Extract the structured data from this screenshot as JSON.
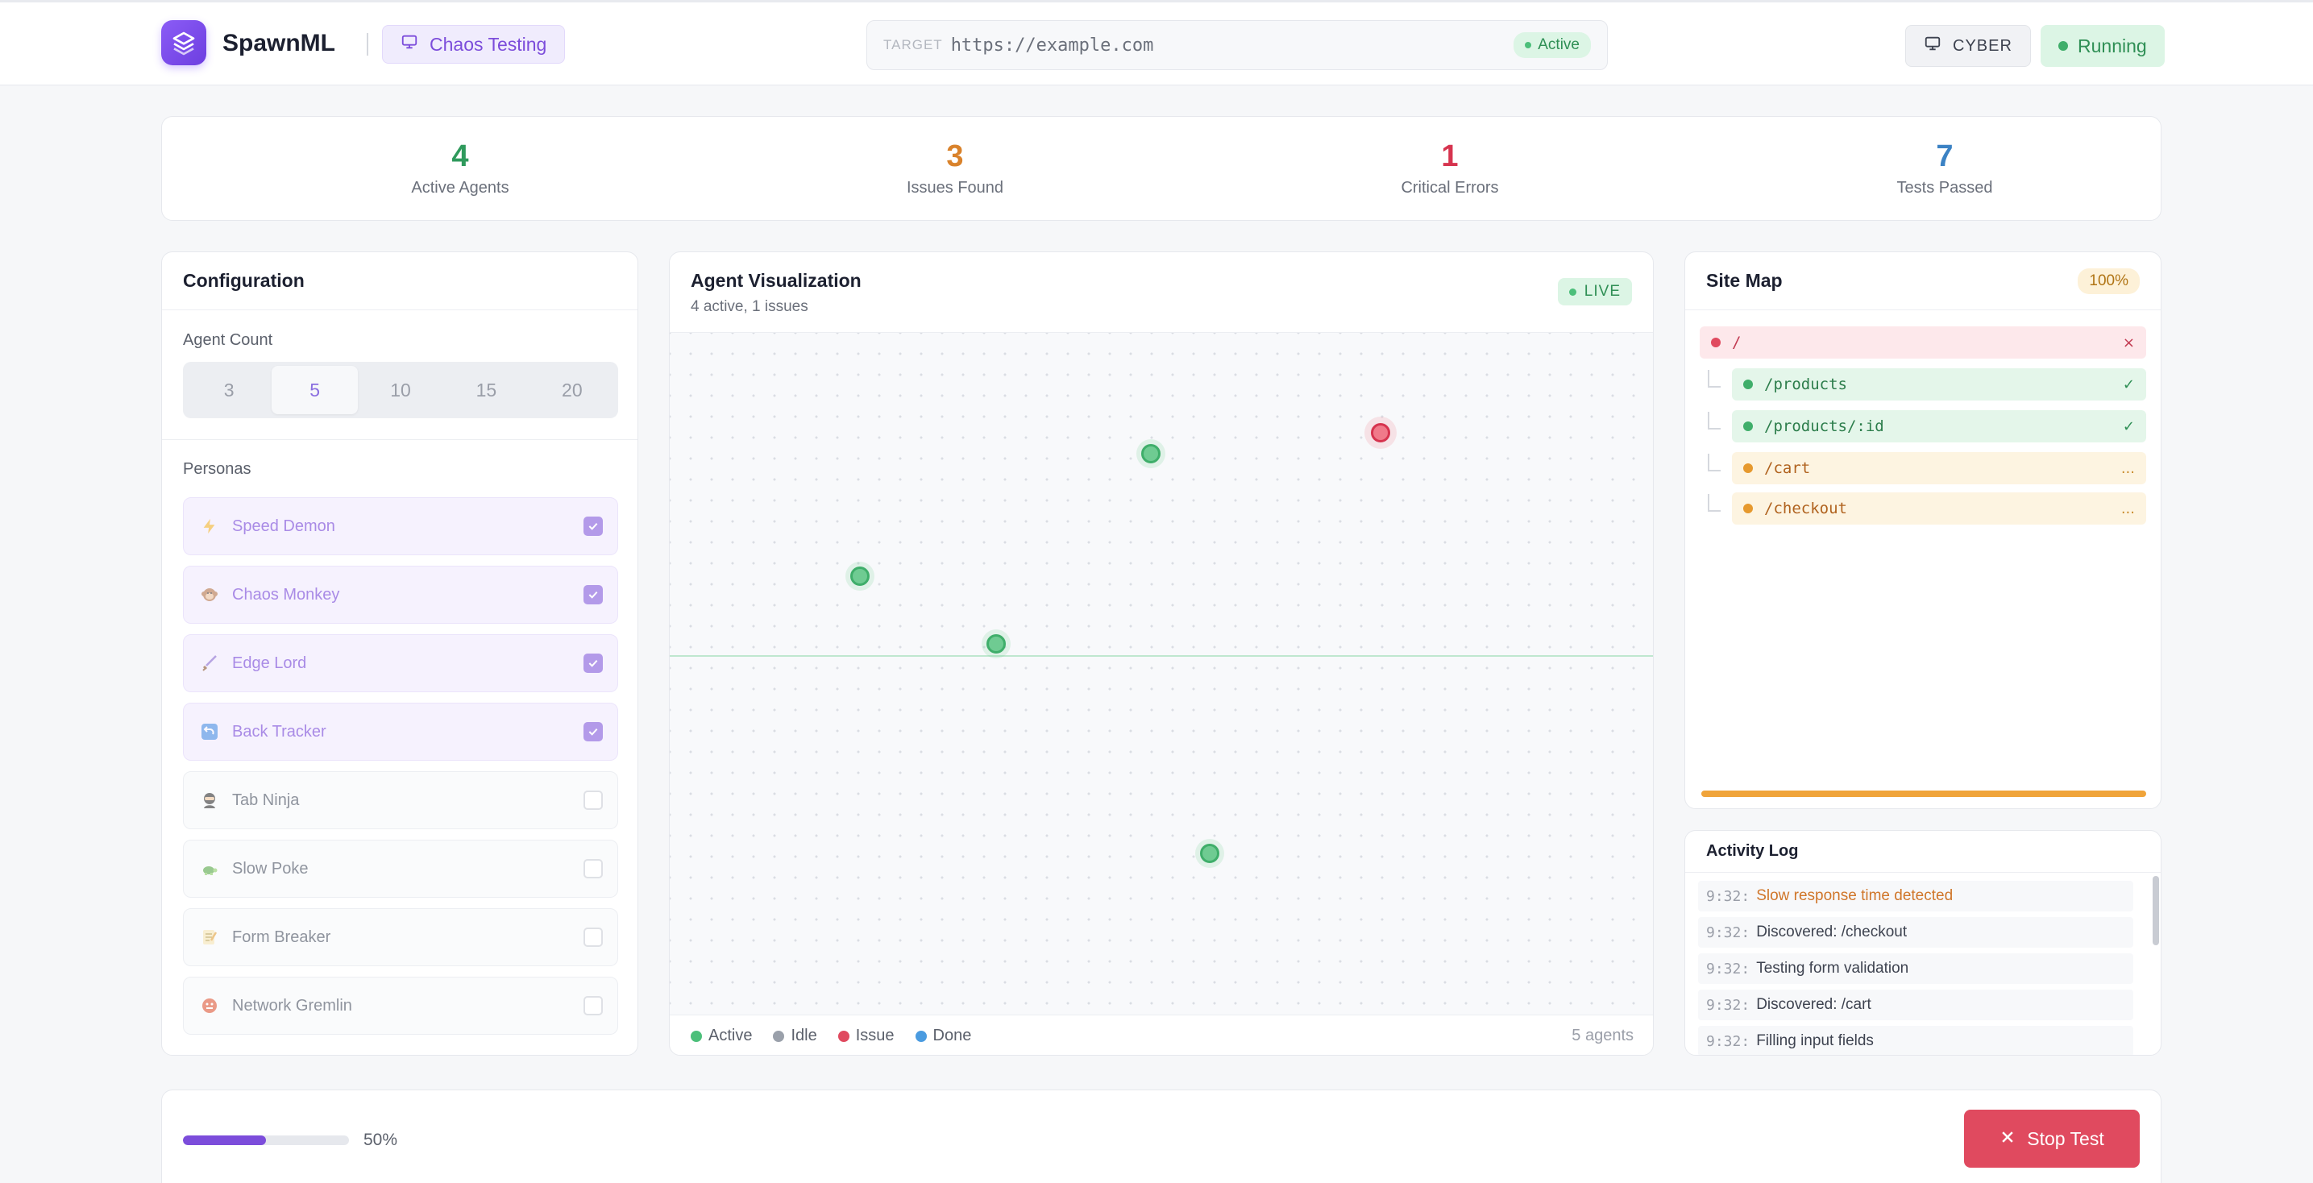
{
  "header": {
    "brand": "SpawnML",
    "mode_label": "Chaos Testing",
    "target_label": "TARGET",
    "target_url": "https://example.com",
    "target_status": "Active",
    "theme_label": "CYBER",
    "run_status": "Running"
  },
  "stats": [
    {
      "value": "4",
      "label": "Active Agents",
      "color": "#2f9a5c"
    },
    {
      "value": "3",
      "label": "Issues Found",
      "color": "#d9822b"
    },
    {
      "value": "1",
      "label": "Critical Errors",
      "color": "#d6344f"
    },
    {
      "value": "7",
      "label": "Tests Passed",
      "color": "#3b82c4"
    }
  ],
  "config": {
    "title": "Configuration",
    "agent_count_label": "Agent Count",
    "agent_counts": [
      "3",
      "5",
      "10",
      "15",
      "20"
    ],
    "selected_count": "5",
    "personas_label": "Personas",
    "personas": [
      {
        "name": "Speed Demon",
        "icon": "lightning-icon",
        "checked": true
      },
      {
        "name": "Chaos Monkey",
        "icon": "monkey-icon",
        "checked": true
      },
      {
        "name": "Edge Lord",
        "icon": "sword-icon",
        "checked": true
      },
      {
        "name": "Back Tracker",
        "icon": "back-arrow-icon",
        "checked": true
      },
      {
        "name": "Tab Ninja",
        "icon": "ninja-icon",
        "checked": false
      },
      {
        "name": "Slow Poke",
        "icon": "turtle-icon",
        "checked": false
      },
      {
        "name": "Form Breaker",
        "icon": "memo-icon",
        "checked": false
      },
      {
        "name": "Network Gremlin",
        "icon": "gremlin-icon",
        "checked": false
      }
    ]
  },
  "viz": {
    "title": "Agent Visualization",
    "subtitle": "4 active, 1 issues",
    "live_label": "LIVE",
    "agents": [
      {
        "status": "active"
      },
      {
        "status": "issue"
      },
      {
        "status": "active"
      },
      {
        "status": "active"
      },
      {
        "status": "active"
      }
    ],
    "legend": [
      {
        "label": "Active",
        "color": "#4cbf7a"
      },
      {
        "label": "Idle",
        "color": "#9aa0aa"
      },
      {
        "label": "Issue",
        "color": "#e04a5f"
      },
      {
        "label": "Done",
        "color": "#4a9be0"
      }
    ],
    "agent_total": "5 agents"
  },
  "sitemap": {
    "title": "Site Map",
    "percent": "100%",
    "progress": 1.0,
    "nodes": [
      {
        "path": "/",
        "status": "×",
        "state": "error"
      },
      {
        "path": "/products",
        "status": "✓",
        "state": "ok"
      },
      {
        "path": "/products/:id",
        "status": "✓",
        "state": "ok"
      },
      {
        "path": "/cart",
        "status": "...",
        "state": "pending"
      },
      {
        "path": "/checkout",
        "status": "...",
        "state": "pending"
      }
    ]
  },
  "log": {
    "title": "Activity Log",
    "entries": [
      {
        "time": "9:32:",
        "message": "Slow response time detected",
        "level": "warn"
      },
      {
        "time": "9:32:",
        "message": "Discovered: /checkout",
        "level": "info"
      },
      {
        "time": "9:32:",
        "message": "Testing form validation",
        "level": "info"
      },
      {
        "time": "9:32:",
        "message": "Discovered: /cart",
        "level": "info"
      },
      {
        "time": "9:32:",
        "message": "Filling input fields",
        "level": "info"
      }
    ]
  },
  "footer": {
    "progress_percent": 50,
    "progress_label": "50%",
    "stop_label": "Stop Test"
  }
}
